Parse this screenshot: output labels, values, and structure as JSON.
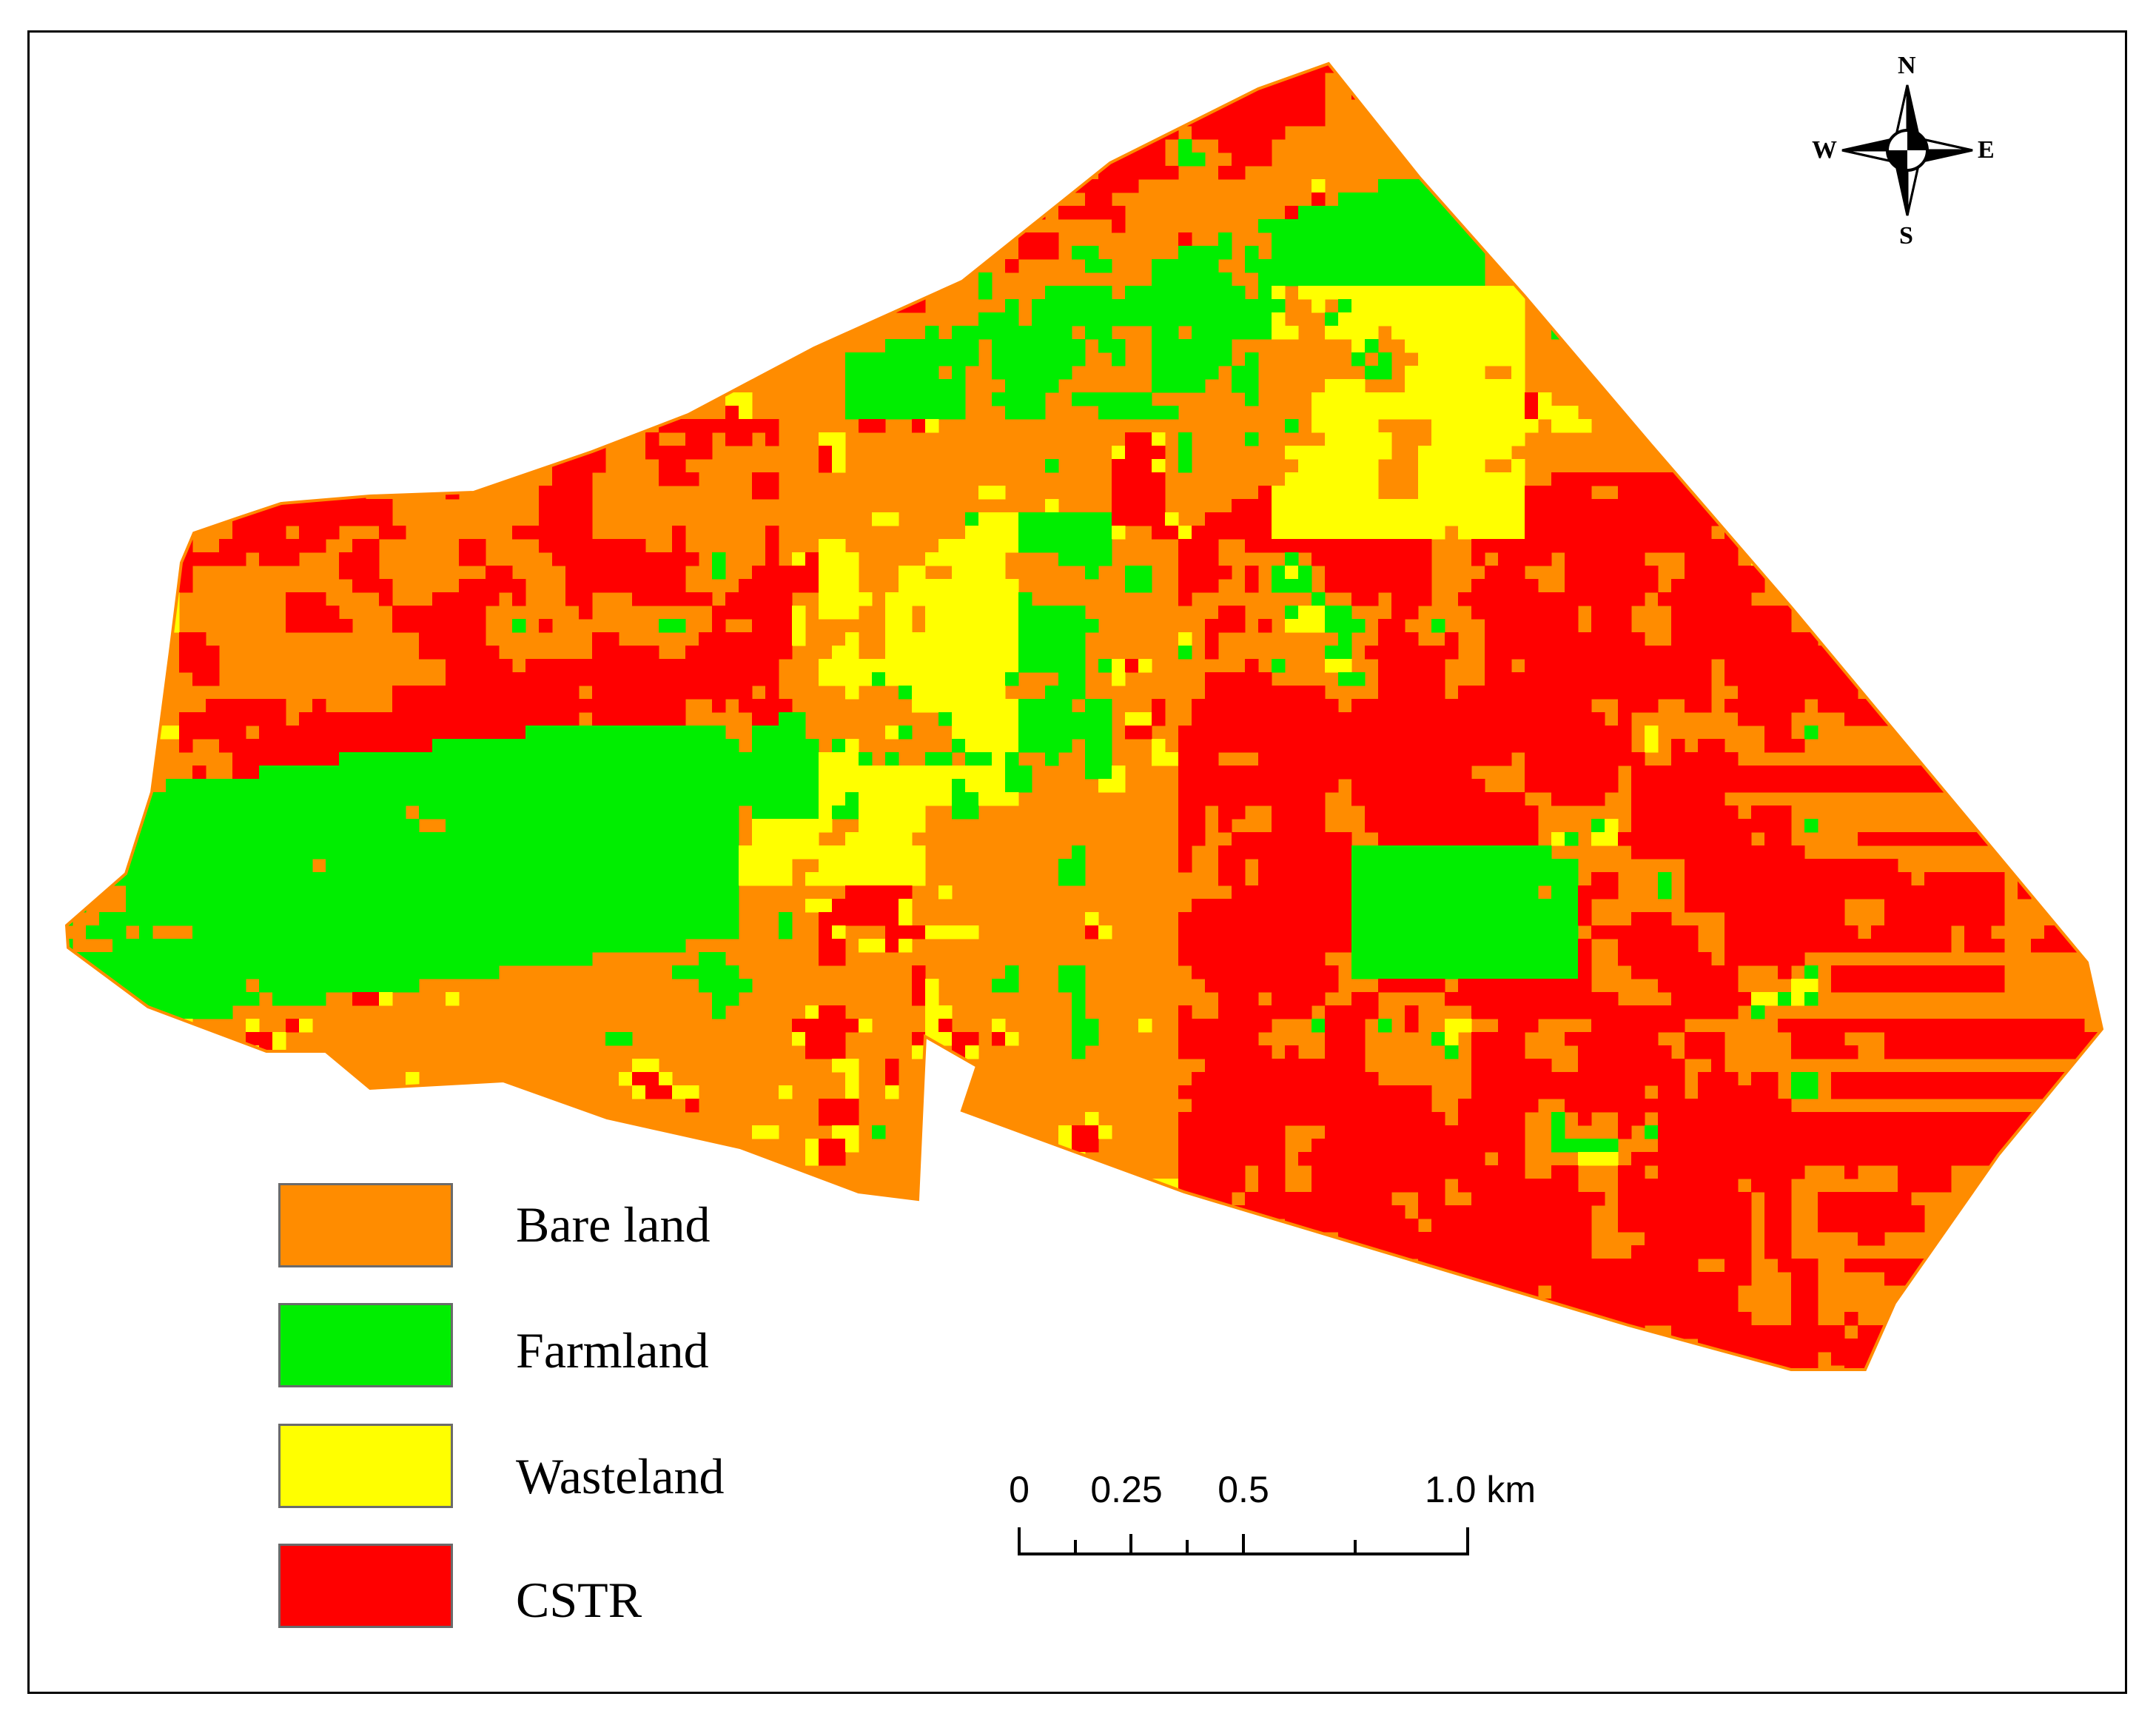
{
  "legend": {
    "items": [
      {
        "label": "Bare land",
        "color": "#FF8C00"
      },
      {
        "label": "Farmland",
        "color": "#00EE00"
      },
      {
        "label": "Wasteland",
        "color": "#FFFF00"
      },
      {
        "label": "CSTR",
        "color": "#FF0000"
      }
    ]
  },
  "scale_bar": {
    "labels": [
      "0",
      "0.25",
      "0.5",
      "1.0 km"
    ]
  },
  "compass": {
    "north": "N",
    "south": "S",
    "east": "E",
    "west": "W"
  }
}
